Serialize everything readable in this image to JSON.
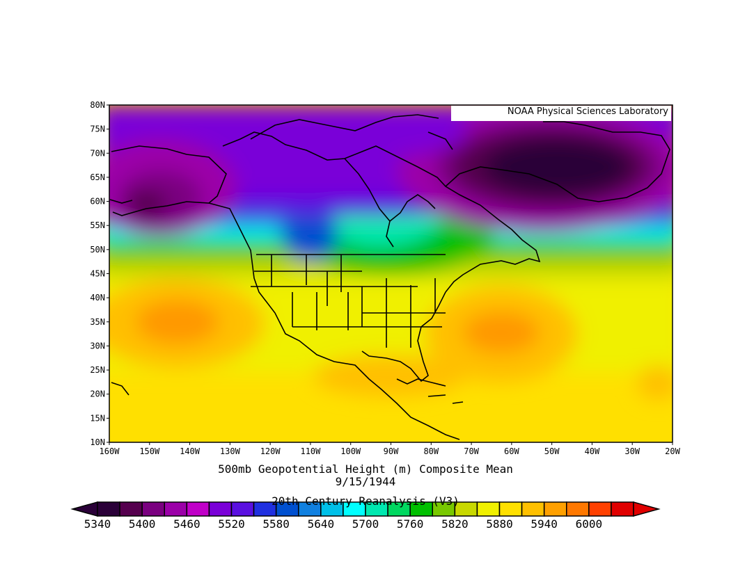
{
  "credit": "NOAA Physical Sciences Laboratory",
  "title": "500mb Geopotential Height (m) Composite Mean",
  "date": "9/15/1944",
  "source": "20th Century Reanalysis (V3)",
  "map": {
    "projection": "cylindrical-equidistant",
    "lon_range": [
      -160,
      -20
    ],
    "lat_range": [
      10,
      80
    ],
    "lat_ticks": [
      "80N",
      "75N",
      "70N",
      "65N",
      "60N",
      "55N",
      "50N",
      "45N",
      "40N",
      "35N",
      "30N",
      "25N",
      "20N",
      "15N",
      "10N"
    ],
    "lon_ticks": [
      "160W",
      "150W",
      "140W",
      "130W",
      "120W",
      "110W",
      "100W",
      "90W",
      "80W",
      "70W",
      "60W",
      "50W",
      "40W",
      "30W",
      "20W"
    ]
  },
  "colorbar": {
    "labels": [
      "5340",
      "5400",
      "5460",
      "5520",
      "5580",
      "5640",
      "5700",
      "5760",
      "5820",
      "5880",
      "5940",
      "6000"
    ],
    "colors": [
      "#2a0038",
      "#55004e",
      "#7a0080",
      "#9b00a8",
      "#c000c8",
      "#7a00d8",
      "#5a10e0",
      "#2030e0",
      "#0050d0",
      "#1080e0",
      "#00c0e8",
      "#00ffff",
      "#00e8b0",
      "#00d860",
      "#00c000",
      "#78c800",
      "#c8d800",
      "#f0f000",
      "#ffe000",
      "#ffc000",
      "#ffa000",
      "#ff7800",
      "#ff4000",
      "#e00000"
    ]
  }
}
